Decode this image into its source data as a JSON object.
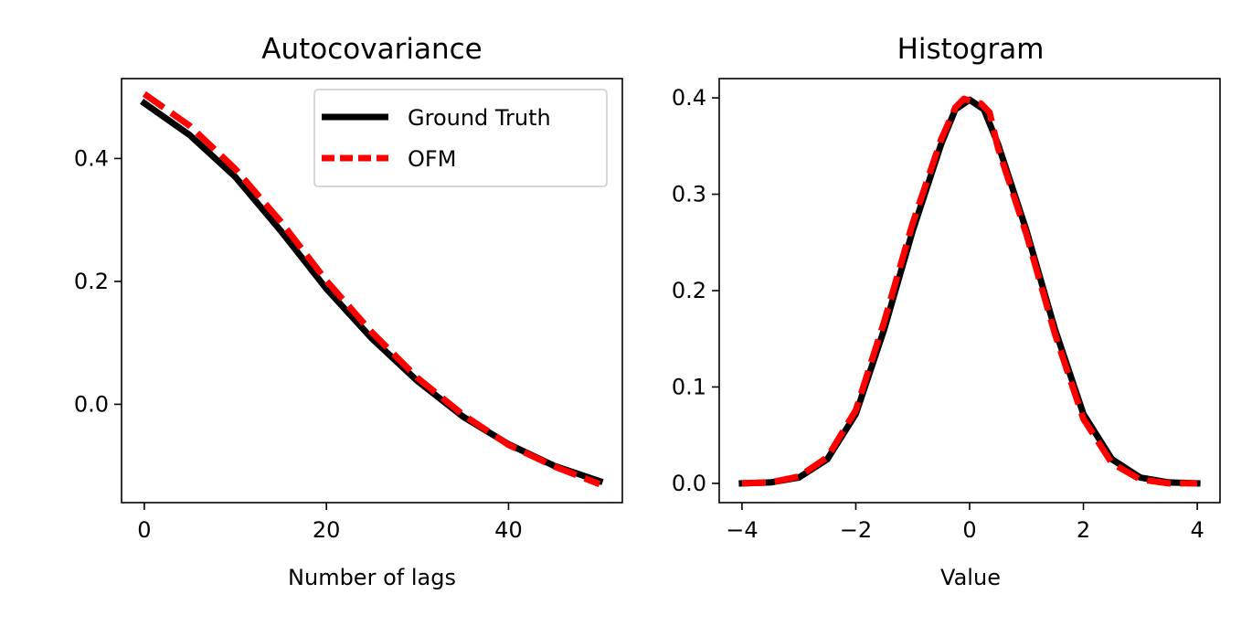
{
  "chart_data": [
    {
      "type": "line",
      "title": "Autocovariance",
      "xlabel": "Number of lags",
      "ylabel": "",
      "xlim": [
        -2.5,
        52.5
      ],
      "ylim": [
        -0.16,
        0.53
      ],
      "xticks": [
        0,
        20,
        40
      ],
      "yticks": [
        0.0,
        0.2,
        0.4
      ],
      "xtick_labels": [
        "0",
        "20",
        "40"
      ],
      "ytick_labels": [
        "0.0",
        "0.2",
        "0.4"
      ],
      "legend": {
        "position": "top-right",
        "entries": [
          "Ground Truth",
          "OFM"
        ]
      },
      "series": [
        {
          "name": "Ground Truth",
          "color": "#000000",
          "style": "solid",
          "x": [
            0,
            5,
            10,
            15,
            20,
            25,
            30,
            35,
            40,
            45,
            50
          ],
          "y": [
            0.49,
            0.438,
            0.37,
            0.282,
            0.188,
            0.107,
            0.038,
            -0.02,
            -0.065,
            -0.1,
            -0.125
          ]
        },
        {
          "name": "OFM",
          "color": "#ff0000",
          "style": "dashed",
          "x": [
            0,
            5,
            10,
            15,
            20,
            25,
            30,
            35,
            40,
            45,
            50
          ],
          "y": [
            0.505,
            0.453,
            0.383,
            0.297,
            0.201,
            0.117,
            0.043,
            -0.017,
            -0.066,
            -0.101,
            -0.13
          ]
        }
      ]
    },
    {
      "type": "line",
      "title": "Histogram",
      "xlabel": "Value",
      "ylabel": "",
      "xlim": [
        -4.4,
        4.4
      ],
      "ylim": [
        -0.02,
        0.42
      ],
      "xticks": [
        -4,
        -2,
        0,
        2,
        4
      ],
      "yticks": [
        0.0,
        0.1,
        0.2,
        0.3,
        0.4
      ],
      "xtick_labels": [
        "−4",
        "−2",
        "0",
        "2",
        "4"
      ],
      "ytick_labels": [
        "0.0",
        "0.1",
        "0.2",
        "0.3",
        "0.4"
      ],
      "series": [
        {
          "name": "Ground Truth",
          "color": "#000000",
          "style": "solid",
          "x": [
            -4,
            -3.5,
            -3,
            -2.5,
            -2,
            -1.5,
            -1,
            -0.5,
            -0.25,
            0,
            0.25,
            0.5,
            1,
            1.5,
            2,
            2.5,
            3,
            3.5,
            4
          ],
          "y": [
            0.0,
            0.001,
            0.006,
            0.025,
            0.072,
            0.16,
            0.262,
            0.352,
            0.388,
            0.398,
            0.388,
            0.352,
            0.262,
            0.16,
            0.072,
            0.025,
            0.006,
            0.001,
            0.0
          ]
        },
        {
          "name": "OFM",
          "color": "#ff0000",
          "style": "dashed",
          "x": [
            -4,
            -3.5,
            -3,
            -2.5,
            -2,
            -1.5,
            -1,
            -0.5,
            -0.25,
            -0.1,
            0.05,
            0.2,
            0.35,
            0.5,
            1,
            1.5,
            2,
            2.5,
            3,
            3.5,
            4
          ],
          "y": [
            0.0,
            0.001,
            0.007,
            0.027,
            0.076,
            0.168,
            0.27,
            0.357,
            0.39,
            0.399,
            0.396,
            0.394,
            0.385,
            0.348,
            0.258,
            0.155,
            0.067,
            0.021,
            0.004,
            0.0,
            0.0
          ]
        }
      ]
    }
  ]
}
